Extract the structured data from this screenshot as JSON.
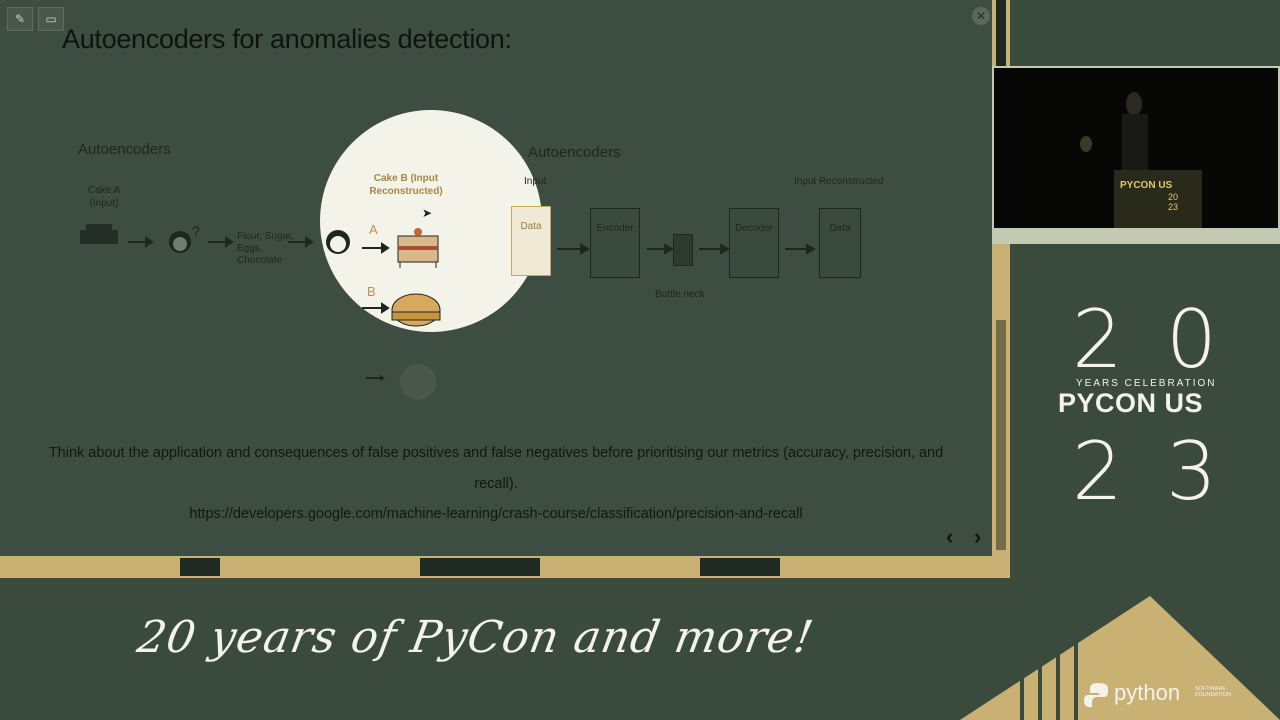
{
  "slide": {
    "title": "Autoencoders for anomalies detection:",
    "diagram_left": {
      "title": "Autoencoders",
      "cake_a": "Cake A (Input)",
      "ingredients": "Flour, Sugar, Eggs, Chocolate",
      "label_a": "A",
      "label_b": "B",
      "cake_b": "Cake B (Input Reconstructed)"
    },
    "diagram_right": {
      "title": "Autoencoders",
      "input": "Input",
      "input_reconstructed": "Input Reconstructed",
      "data_in": "Data",
      "encoder": "Encoder",
      "decoder": "Decoder",
      "data_out": "Data",
      "bottleneck": "Bottle neck"
    },
    "body_text": "Think about the application and consequences of false positives and false negatives before prioritising our metrics (accuracy, precision, and recall).",
    "link": "https://developers.google.com/machine-learning/crash-course/classification/precision-and-recall",
    "prev_arrow": "‹",
    "next_arrow": "›"
  },
  "webcam": {
    "podium_label": "PYCON US",
    "podium_year_top": "20",
    "podium_year_bottom": "23"
  },
  "branding": {
    "digit_1": "2",
    "digit_2": "0",
    "years_celebration": "YEARS CELEBRATION",
    "event": "PYCON US",
    "digit_3": "2",
    "digit_4": "3",
    "tagline": "20 years of PyCon and more!",
    "sponsor": "python",
    "sponsor_sub": "SOFTWARE FOUNDATION"
  },
  "colors": {
    "background": "#3a4a3d",
    "gold": "#c9b173",
    "cream": "#f4f3ea"
  }
}
